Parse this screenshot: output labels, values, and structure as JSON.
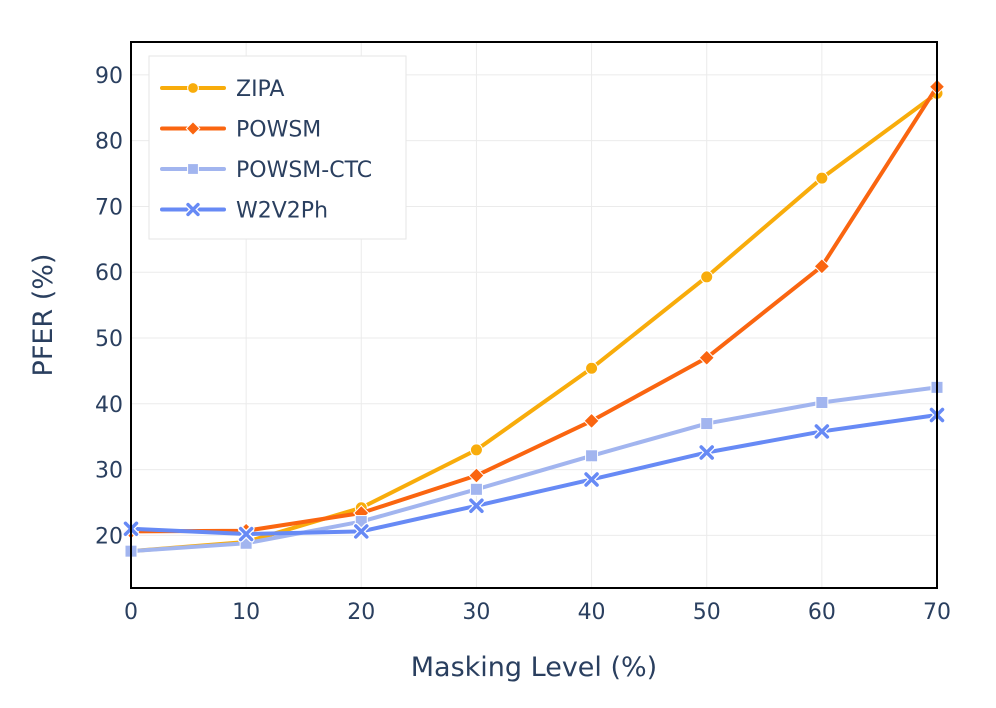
{
  "chart_data": {
    "type": "line",
    "xlabel": "Masking Level (%)",
    "ylabel": "PFER (%)",
    "x": [
      0,
      10,
      20,
      30,
      40,
      50,
      60,
      70
    ],
    "xlim": [
      0,
      70
    ],
    "ylim": [
      12,
      95
    ],
    "xticks": [
      "0",
      "10",
      "20",
      "30",
      "40",
      "50",
      "60",
      "70"
    ],
    "yticks": [
      "20",
      "30",
      "40",
      "50",
      "60",
      "70",
      "80",
      "90"
    ],
    "grid": true,
    "legend_position": "top-left",
    "series": [
      {
        "name": "ZIPA",
        "color": "#f8ac0b",
        "marker": "circle",
        "values": [
          17.6,
          19.0,
          24.2,
          33.0,
          45.4,
          59.3,
          74.3,
          87.2
        ]
      },
      {
        "name": "POWSM",
        "color": "#fa6510",
        "marker": "diamond",
        "values": [
          20.6,
          20.7,
          23.4,
          29.1,
          37.4,
          47.0,
          60.9,
          88.2
        ]
      },
      {
        "name": "POWSM-CTC",
        "color": "#a2b5ef",
        "marker": "square",
        "values": [
          17.6,
          18.8,
          22.1,
          27.0,
          32.1,
          37.0,
          40.2,
          42.5
        ]
      },
      {
        "name": "W2V2Ph",
        "color": "#678af5",
        "marker": "x",
        "values": [
          21.0,
          20.2,
          20.6,
          24.5,
          28.5,
          32.6,
          35.8,
          38.3
        ]
      }
    ]
  }
}
